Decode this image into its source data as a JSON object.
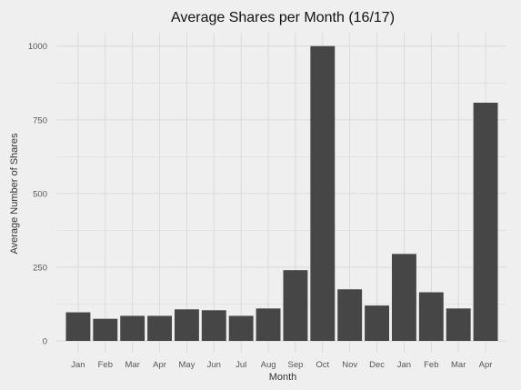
{
  "chart_data": {
    "type": "bar",
    "title": "Average Shares per Month (16/17)",
    "xlabel": "Month",
    "ylabel": "Average Number of Shares",
    "categories": [
      "Jan",
      "Feb",
      "Mar",
      "Apr",
      "May",
      "Jun",
      "Jul",
      "Aug",
      "Sep",
      "Oct",
      "Nov",
      "Dec",
      "Jan",
      "Feb",
      "Mar",
      "Apr"
    ],
    "values": [
      97,
      75,
      85,
      85,
      107,
      104,
      85,
      110,
      240,
      1000,
      175,
      120,
      295,
      165,
      110,
      808
    ],
    "ylim": [
      0,
      1050
    ],
    "yticks": [
      0,
      250,
      500,
      750,
      1000
    ],
    "grid": true,
    "colors": {
      "background": "#efefef",
      "grid": "#d9d9d9",
      "bar": "#464646",
      "title": "#111111",
      "tick_label": "#555555"
    }
  }
}
